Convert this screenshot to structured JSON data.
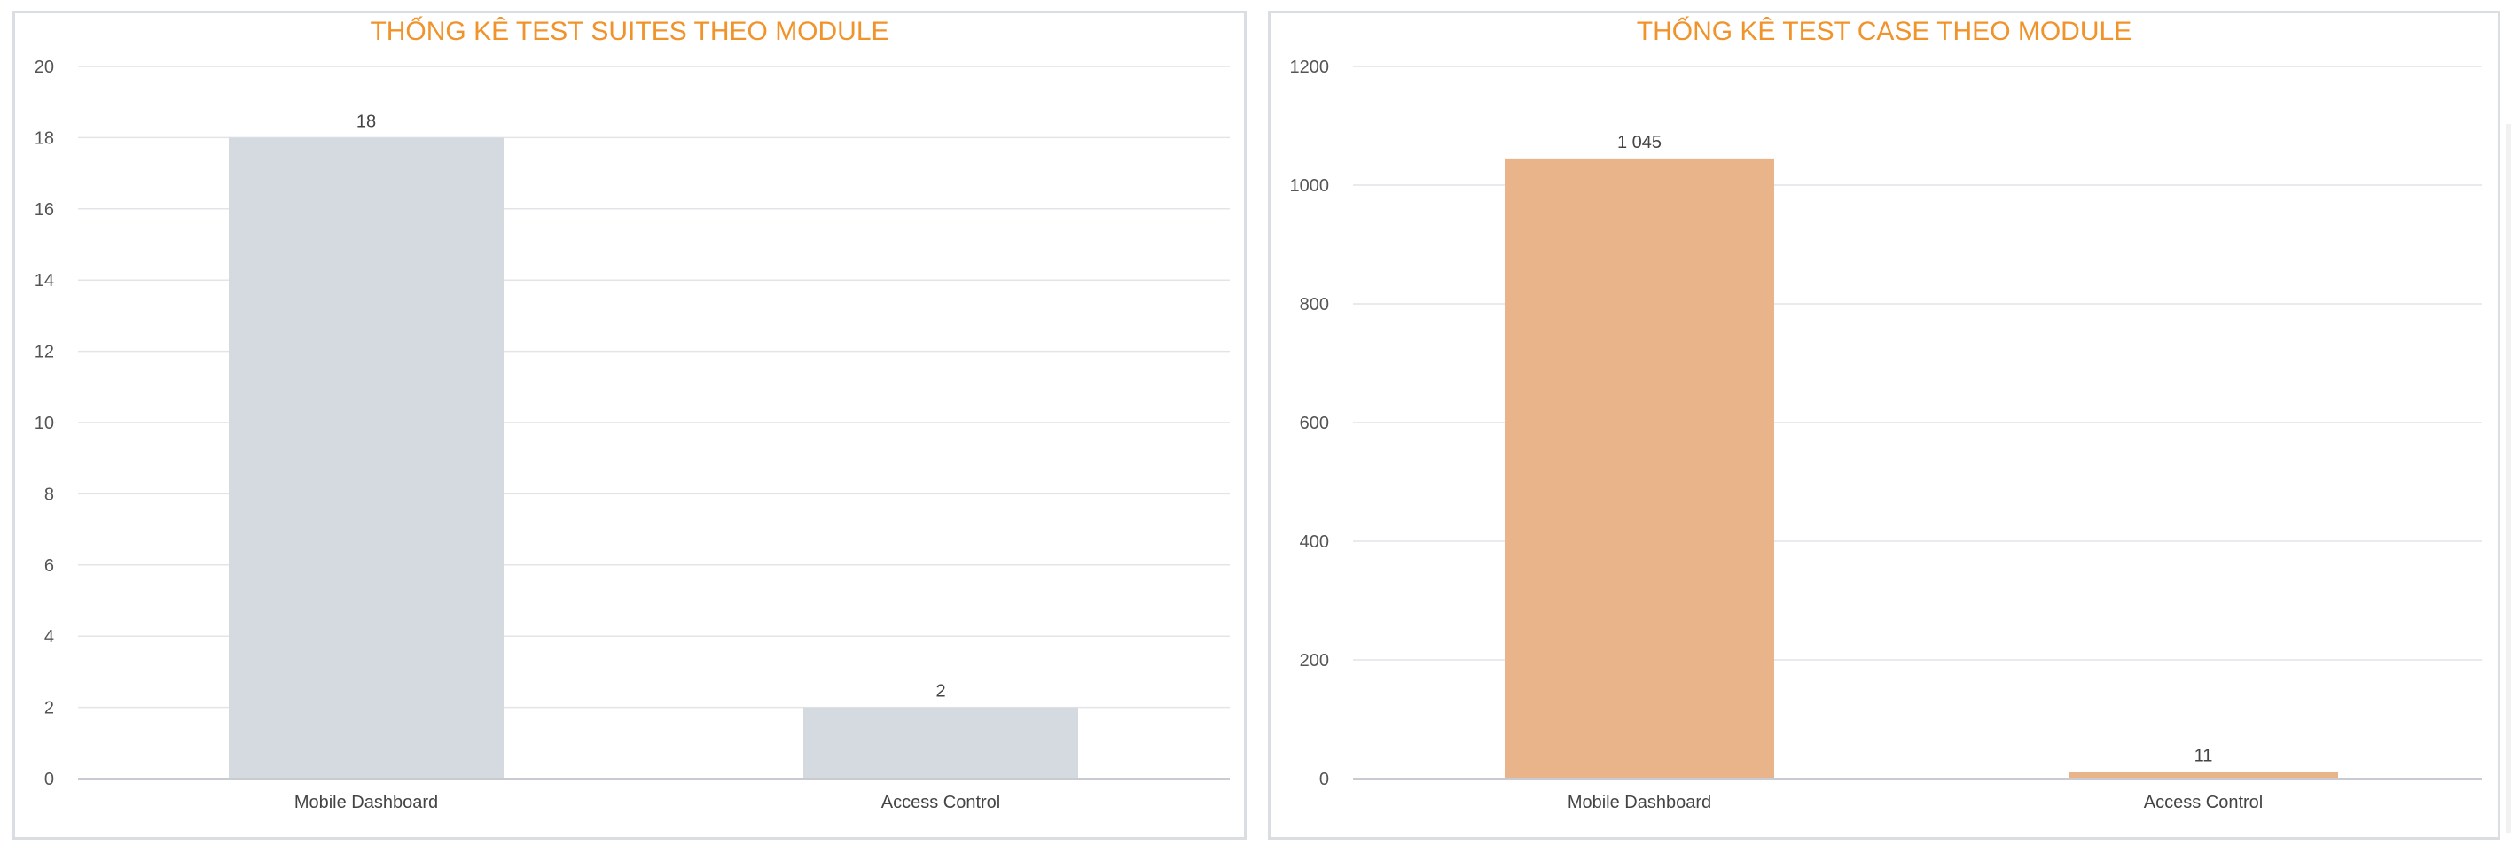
{
  "chart_data": [
    {
      "type": "bar",
      "title": "THỐNG KÊ TEST SUITES THEO MODULE",
      "categories": [
        "Mobile Dashboard",
        "Access Control"
      ],
      "values": [
        18,
        2
      ],
      "value_labels": [
        "18",
        "2"
      ],
      "ylim": [
        0,
        20
      ],
      "yticks": [
        0,
        2,
        4,
        6,
        8,
        10,
        12,
        14,
        16,
        18,
        20
      ],
      "xlabel": "",
      "ylabel": "",
      "grid": true,
      "bar_color": "#d5dae1"
    },
    {
      "type": "bar",
      "title": "THỐNG KÊ TEST CASE THEO MODULE",
      "categories": [
        "Mobile Dashboard",
        "Access Control"
      ],
      "values": [
        1045,
        11
      ],
      "value_labels": [
        "1 045",
        "11"
      ],
      "ylim": [
        0,
        1200
      ],
      "yticks": [
        0,
        200,
        400,
        600,
        800,
        1000,
        1200
      ],
      "xlabel": "",
      "ylabel": "",
      "grid": true,
      "bar_color": "#e9b489"
    }
  ],
  "colors": {
    "title": "#f0932b",
    "grid": "#e2e4e8",
    "axis": "#c8ccd2",
    "text": "#555555"
  }
}
